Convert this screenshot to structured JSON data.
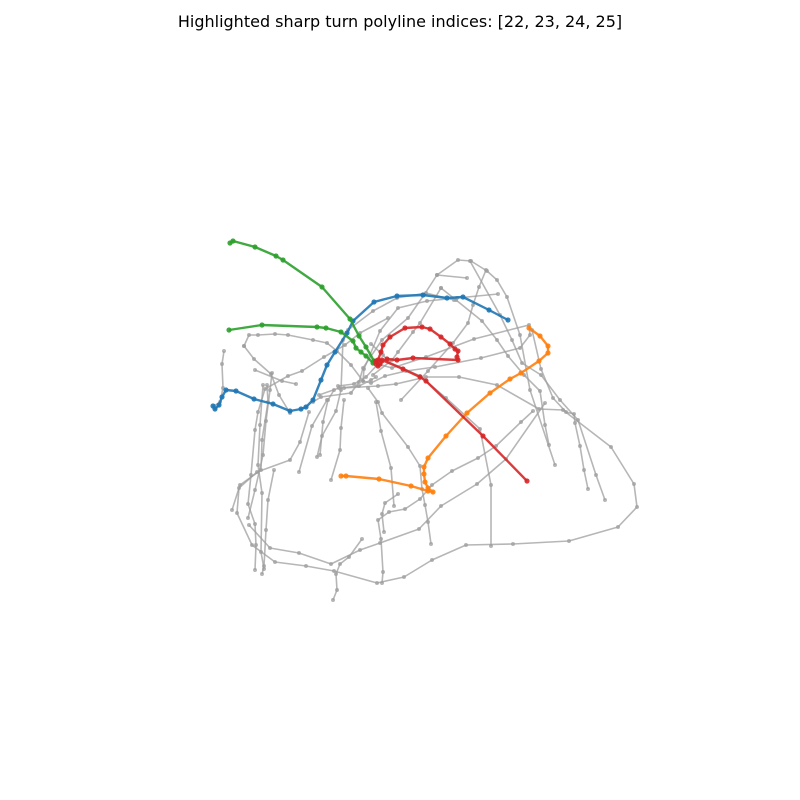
{
  "title": "Highlighted sharp turn polyline indices: [22, 23, 24, 25]",
  "colors": {
    "background": "#ffffff",
    "gray": "#9e9e9e",
    "series": [
      "#1f77b4",
      "#ff7f0e",
      "#2ca02c",
      "#d62728"
    ]
  },
  "chart_data": {
    "type": "line",
    "grid": false,
    "axes_visible": false,
    "highlighted_indices": [
      22,
      23,
      24,
      25
    ],
    "background_polylines": [
      [
        [
          437,
          275
        ],
        [
          458,
          260
        ],
        [
          471,
          261
        ],
        [
          487,
          271
        ],
        [
          497,
          280
        ],
        [
          507,
          297
        ],
        [
          520,
          335
        ],
        [
          530,
          390
        ],
        [
          555,
          465
        ]
      ],
      [
        [
          486,
          270
        ],
        [
          479,
          287
        ],
        [
          473,
          305
        ],
        [
          468,
          323
        ],
        [
          453,
          343
        ],
        [
          428,
          371
        ],
        [
          401,
          400
        ]
      ],
      [
        [
          441,
          288
        ],
        [
          456,
          300
        ],
        [
          482,
          321
        ],
        [
          497,
          340
        ],
        [
          508,
          356
        ],
        [
          524,
          375
        ],
        [
          540,
          391
        ],
        [
          545,
          425
        ],
        [
          549,
          445
        ]
      ],
      [
        [
          470,
          261
        ],
        [
          500,
          315
        ],
        [
          512,
          340
        ],
        [
          522,
          363
        ],
        [
          541,
          375
        ],
        [
          560,
          400
        ],
        [
          578,
          420
        ],
        [
          596,
          475
        ],
        [
          605,
          500
        ]
      ],
      [
        [
          376,
          402
        ],
        [
          381,
          431
        ],
        [
          391,
          468
        ],
        [
          394,
          506
        ]
      ],
      [
        [
          348,
          330
        ],
        [
          373,
          311
        ],
        [
          397,
          298
        ],
        [
          426,
          293
        ],
        [
          454,
          300
        ]
      ],
      [
        [
          344,
          388
        ],
        [
          378,
          386
        ],
        [
          396,
          384
        ],
        [
          426,
          377
        ],
        [
          459,
          377
        ],
        [
          497,
          385
        ],
        [
          539,
          409
        ],
        [
          563,
          410
        ],
        [
          611,
          447
        ],
        [
          634,
          484
        ],
        [
          637,
          507
        ],
        [
          618,
          527
        ],
        [
          569,
          541
        ],
        [
          513,
          544
        ],
        [
          466,
          545
        ],
        [
          432,
          560
        ],
        [
          404,
          577
        ],
        [
          377,
          583
        ],
        [
          334,
          571
        ],
        [
          306,
          566
        ],
        [
          275,
          562
        ],
        [
          252,
          545
        ],
        [
          237,
          513
        ],
        [
          239,
          488
        ],
        [
          257,
          472
        ],
        [
          290,
          460
        ],
        [
          300,
          442
        ],
        [
          309,
          412
        ]
      ],
      [
        [
          249,
          525
        ],
        [
          270,
          548
        ],
        [
          299,
          553
        ],
        [
          331,
          564
        ],
        [
          360,
          550
        ],
        [
          380,
          543
        ],
        [
          419,
          529
        ],
        [
          441,
          506
        ],
        [
          477,
          484
        ],
        [
          506,
          459
        ],
        [
          545,
          403
        ]
      ],
      [
        [
          344,
          400
        ],
        [
          341,
          428
        ],
        [
          340,
          450
        ],
        [
          331,
          480
        ]
      ],
      [
        [
          343,
          340
        ],
        [
          341,
          390
        ],
        [
          336,
          411
        ],
        [
          322,
          436
        ],
        [
          317,
          457
        ]
      ],
      [
        [
          371,
          344
        ],
        [
          383,
          355
        ],
        [
          389,
          362
        ],
        [
          420,
          376
        ],
        [
          446,
          398
        ],
        [
          480,
          429
        ],
        [
          491,
          485
        ],
        [
          491,
          546
        ]
      ],
      [
        [
          327,
          400
        ],
        [
          312,
          426
        ],
        [
          299,
          472
        ]
      ],
      [
        [
          388,
          318
        ],
        [
          360,
          333
        ],
        [
          345,
          345
        ],
        [
          324,
          357
        ],
        [
          302,
          371
        ],
        [
          288,
          376
        ],
        [
          265,
          389
        ],
        [
          258,
          412
        ],
        [
          255,
          430
        ],
        [
          251,
          475
        ],
        [
          248,
          504
        ],
        [
          255,
          524
        ],
        [
          256,
          545
        ],
        [
          255,
          570
        ]
      ],
      [
        [
          263,
          385
        ],
        [
          260,
          425
        ],
        [
          258,
          465
        ],
        [
          262,
          493
        ],
        [
          261,
          552
        ],
        [
          264,
          569
        ]
      ],
      [
        [
          441,
          288
        ],
        [
          420,
          323
        ],
        [
          413,
          332
        ],
        [
          398,
          352
        ],
        [
          392,
          360
        ],
        [
          373,
          375
        ]
      ],
      [
        [
          498,
          294
        ],
        [
          457,
          298
        ],
        [
          427,
          301
        ],
        [
          398,
          308
        ],
        [
          380,
          331
        ],
        [
          364,
          369
        ],
        [
          363,
          381
        ]
      ],
      [
        [
          467,
          278
        ],
        [
          437,
          275
        ],
        [
          424,
          295
        ],
        [
          408,
          318
        ],
        [
          382,
          340
        ],
        [
          363,
          368
        ],
        [
          359,
          382
        ],
        [
          351,
          393
        ],
        [
          321,
          397
        ],
        [
          313,
          402
        ]
      ],
      [
        [
          224,
          351
        ],
        [
          222,
          364
        ],
        [
          223,
          388
        ],
        [
          220,
          402
        ],
        [
          214,
          406
        ]
      ],
      [
        [
          319,
          395
        ],
        [
          339,
          388
        ],
        [
          359,
          386
        ],
        [
          371,
          380
        ],
        [
          376,
          377
        ]
      ],
      [
        [
          255,
          370
        ],
        [
          282,
          381
        ],
        [
          296,
          384
        ]
      ],
      [
        [
          533,
          411
        ],
        [
          521,
          422
        ],
        [
          496,
          446
        ],
        [
          478,
          458
        ],
        [
          452,
          471
        ],
        [
          432,
          485
        ],
        [
          420,
          499
        ],
        [
          405,
          509
        ],
        [
          389,
          512
        ],
        [
          378,
          520
        ],
        [
          381,
          539
        ],
        [
          383,
          572
        ],
        [
          382,
          583
        ]
      ],
      [
        [
          244,
          346
        ],
        [
          249,
          335
        ],
        [
          258,
          335
        ],
        [
          275,
          334
        ],
        [
          288,
          335
        ],
        [
          313,
          340
        ],
        [
          327,
          343
        ],
        [
          337,
          351
        ],
        [
          351,
          365
        ],
        [
          363,
          381
        ],
        [
          371,
          383
        ],
        [
          385,
          376
        ],
        [
          406,
          371
        ],
        [
          435,
          367
        ],
        [
          481,
          358
        ],
        [
          520,
          348
        ],
        [
          530,
          335
        ],
        [
          529,
          325
        ],
        [
          474,
          339
        ],
        [
          426,
          357
        ],
        [
          392,
          368
        ],
        [
          378,
          364
        ],
        [
          366,
          377
        ],
        [
          354,
          384
        ],
        [
          338,
          386
        ]
      ],
      [
        [
          334,
          390
        ],
        [
          328,
          400
        ],
        [
          323,
          422
        ],
        [
          320,
          455
        ]
      ],
      [
        [
          368,
          388
        ],
        [
          378,
          402
        ],
        [
          382,
          413
        ],
        [
          408,
          447
        ],
        [
          420,
          466
        ],
        [
          422,
          489
        ],
        [
          425,
          505
        ],
        [
          428,
          522
        ],
        [
          431,
          544
        ]
      ],
      [
        [
          267,
          385
        ],
        [
          268,
          402
        ],
        [
          262,
          440
        ],
        [
          261,
          470
        ],
        [
          240,
          485
        ],
        [
          232,
          510
        ]
      ],
      [
        [
          272,
          373
        ],
        [
          270,
          390
        ],
        [
          266,
          421
        ],
        [
          263,
          455
        ],
        [
          255,
          490
        ],
        [
          248,
          518
        ]
      ],
      [
        [
          362,
          539
        ],
        [
          349,
          557
        ],
        [
          340,
          564
        ],
        [
          336,
          574
        ],
        [
          337,
          590
        ],
        [
          333,
          600
        ]
      ],
      [
        [
          398,
          494
        ],
        [
          385,
          503
        ],
        [
          382,
          514
        ],
        [
          384,
          532
        ]
      ],
      [
        [
          274,
          470
        ],
        [
          268,
          500
        ],
        [
          266,
          530
        ],
        [
          264,
          566
        ],
        [
          262,
          574
        ]
      ],
      [
        [
          532,
          330
        ],
        [
          541,
          369
        ],
        [
          553,
          398
        ],
        [
          566,
          412
        ],
        [
          574,
          414
        ],
        [
          575,
          423
        ],
        [
          580,
          446
        ],
        [
          584,
          470
        ],
        [
          588,
          489
        ]
      ],
      [
        [
          244,
          346
        ],
        [
          254,
          359
        ],
        [
          271,
          374
        ],
        [
          279,
          395
        ],
        [
          290,
          413
        ]
      ]
    ],
    "highlighted_polylines": [
      {
        "index": 22,
        "color": "#1f77b4",
        "points": [
          [
            508,
            320
          ],
          [
            489,
            310
          ],
          [
            463,
            297
          ],
          [
            447,
            298
          ],
          [
            423,
            295
          ],
          [
            397,
            296
          ],
          [
            374,
            302
          ],
          [
            353,
            321
          ],
          [
            347,
            333
          ],
          [
            335,
            352
          ],
          [
            327,
            365
          ],
          [
            321,
            380
          ],
          [
            313,
            400
          ],
          [
            306,
            407
          ],
          [
            301,
            409
          ],
          [
            290,
            411
          ],
          [
            273,
            404
          ],
          [
            254,
            399
          ],
          [
            236,
            391
          ],
          [
            226,
            390
          ],
          [
            222,
            397
          ],
          [
            219,
            405
          ],
          [
            215,
            409
          ],
          [
            213,
            406
          ]
        ]
      },
      {
        "index": 23,
        "color": "#ff7f0e",
        "points": [
          [
            529,
            328
          ],
          [
            540,
            336
          ],
          [
            548,
            346
          ],
          [
            548,
            353
          ],
          [
            539,
            361
          ],
          [
            521,
            373
          ],
          [
            510,
            379
          ],
          [
            490,
            393
          ],
          [
            467,
            413
          ],
          [
            446,
            436
          ],
          [
            428,
            458
          ],
          [
            424,
            467
          ],
          [
            424,
            474
          ],
          [
            425,
            482
          ],
          [
            428,
            488
          ],
          [
            433,
            492
          ],
          [
            428,
            491
          ],
          [
            411,
            486
          ],
          [
            379,
            479
          ],
          [
            346,
            476
          ],
          [
            341,
            476
          ]
        ]
      },
      {
        "index": 24,
        "color": "#2ca02c",
        "points": [
          [
            230,
            243
          ],
          [
            233,
            241
          ],
          [
            255,
            247
          ],
          [
            276,
            256
          ],
          [
            283,
            260
          ],
          [
            322,
            287
          ],
          [
            350,
            319
          ],
          [
            359,
            336
          ],
          [
            366,
            347
          ],
          [
            374,
            361
          ],
          [
            373,
            363
          ],
          [
            366,
            356
          ],
          [
            361,
            352
          ],
          [
            356,
            348
          ],
          [
            353,
            341
          ],
          [
            341,
            332
          ],
          [
            326,
            328
          ],
          [
            317,
            327
          ],
          [
            262,
            325
          ],
          [
            229,
            330
          ]
        ]
      },
      {
        "index": 25,
        "color": "#d62728",
        "points": [
          [
            527,
            481
          ],
          [
            483,
            436
          ],
          [
            426,
            381
          ],
          [
            420,
            377
          ],
          [
            403,
            369
          ],
          [
            382,
            360
          ],
          [
            376,
            361
          ],
          [
            378,
            366
          ],
          [
            380,
            364
          ],
          [
            387,
            359
          ],
          [
            397,
            360
          ],
          [
            413,
            358
          ],
          [
            458,
            360
          ],
          [
            457,
            357
          ],
          [
            458,
            351
          ],
          [
            455,
            349
          ],
          [
            450,
            344
          ],
          [
            441,
            337
          ],
          [
            430,
            329
          ],
          [
            422,
            327
          ],
          [
            405,
            328
          ],
          [
            390,
            337
          ],
          [
            383,
            345
          ],
          [
            381,
            352
          ],
          [
            378,
            360
          ],
          [
            376,
            364
          ]
        ]
      }
    ]
  }
}
